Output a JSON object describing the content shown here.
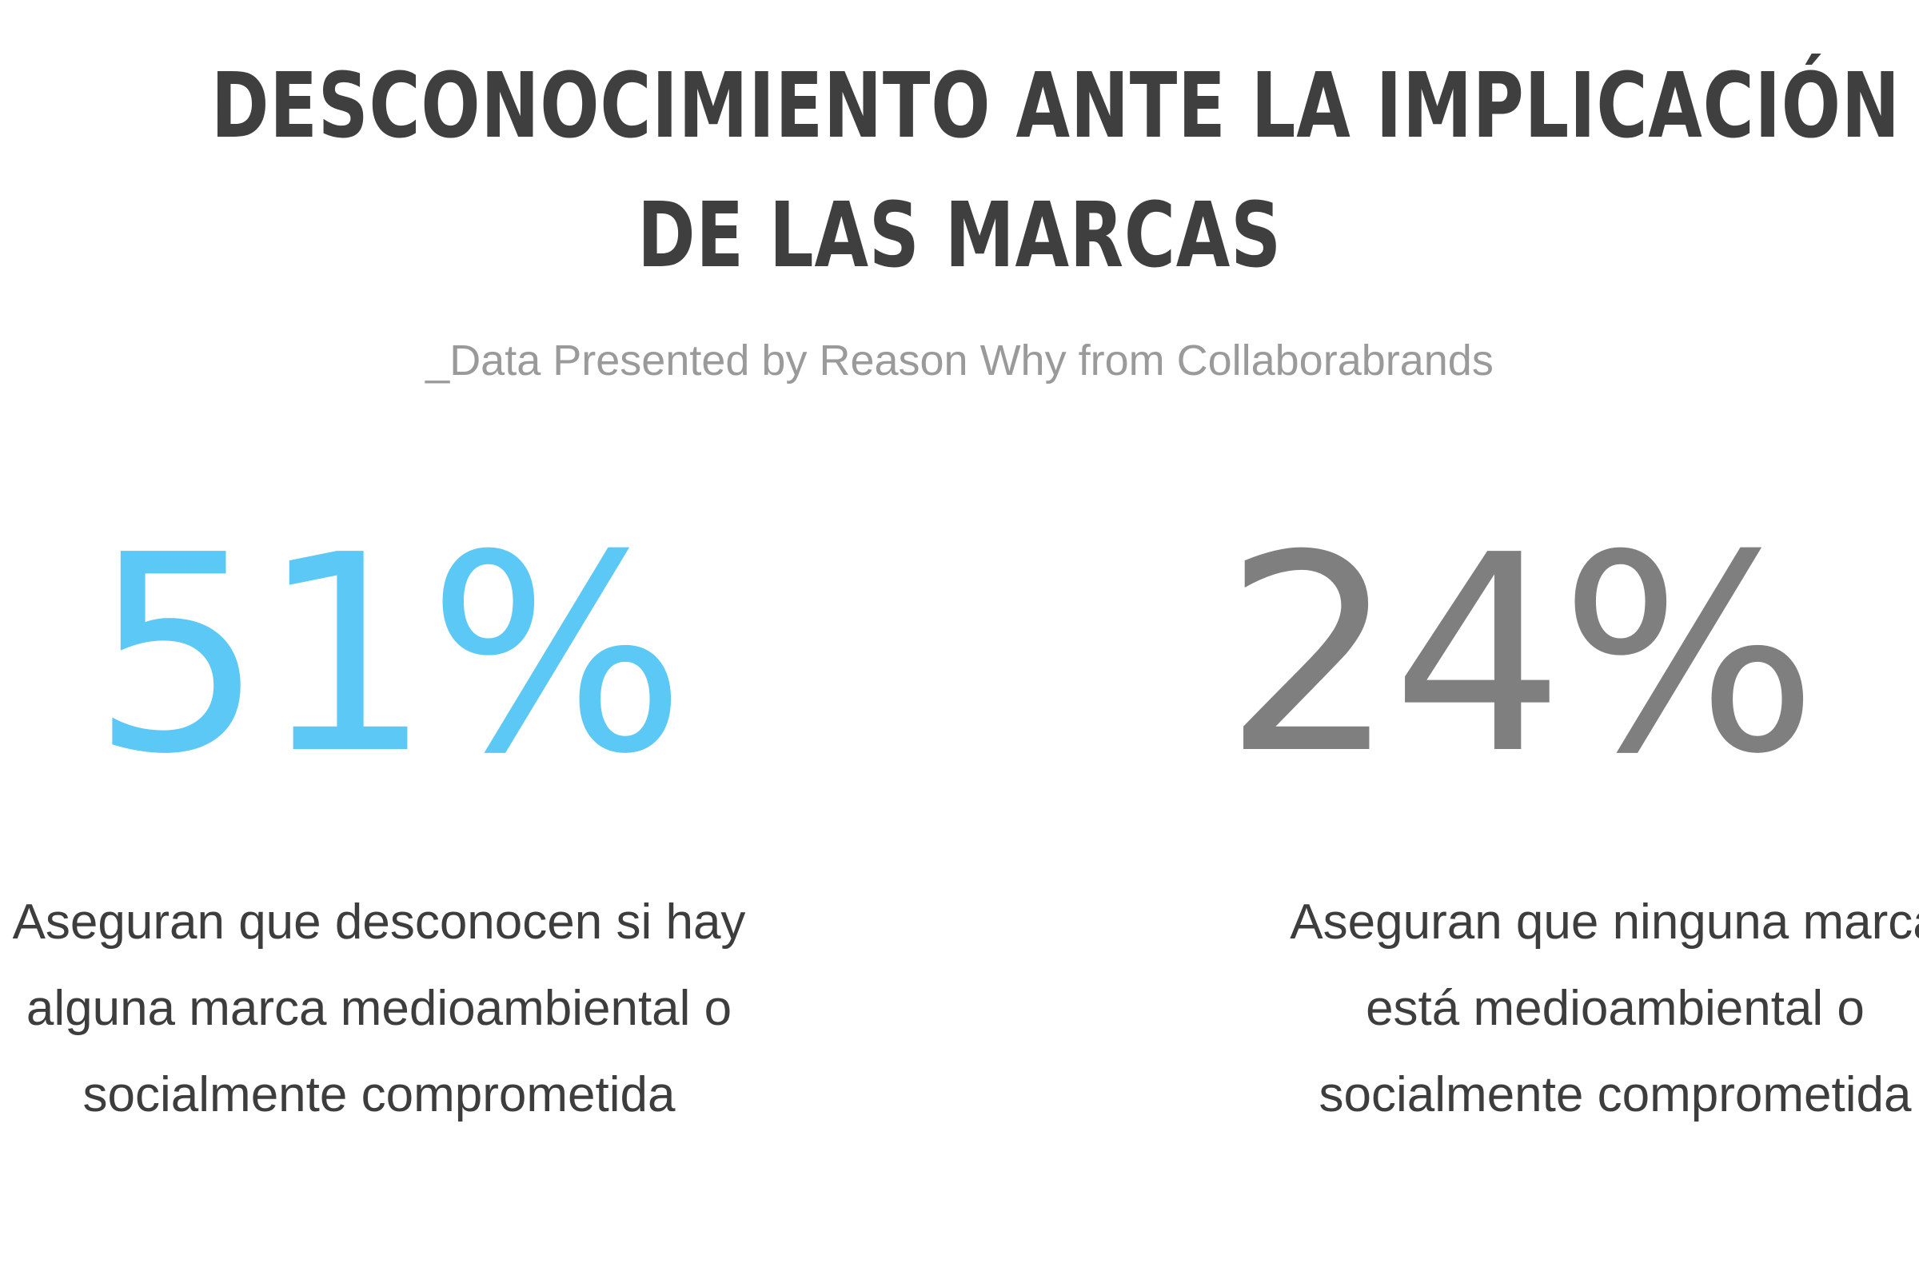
{
  "header": {
    "title_lines": [
      "DESCONOCIMIENTO ANTE LA IMPLICACIÓN",
      "DE LAS MARCAS"
    ],
    "subtitle": "_Data Presented by Reason Why from Collaborabrands"
  },
  "stats": [
    {
      "value": "51%",
      "percent": 51,
      "color": "#5bc8f5",
      "description_lines": [
        "Aseguran que desconocen si hay",
        "alguna marca  medioambiental o",
        "socialmente comprometida"
      ]
    },
    {
      "value": "24%",
      "percent": 24,
      "color": "#7f7f7f",
      "description_lines": [
        "Aseguran que ninguna marca",
        "está medioambiental o",
        "socialmente comprometida"
      ]
    }
  ]
}
